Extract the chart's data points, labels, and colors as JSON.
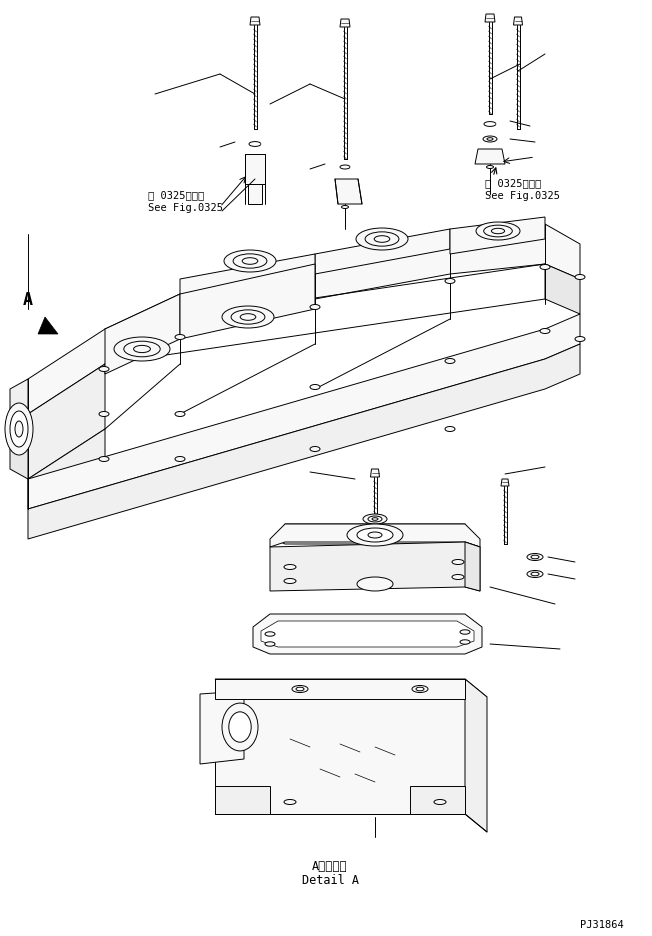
{
  "background_color": "#ffffff",
  "line_color": "#000000",
  "text_color": "#000000",
  "fig_width": 6.52,
  "fig_height": 9.37,
  "dpi": 100,
  "label_see_fig_left_jp": "第 0325図参照",
  "label_see_fig_left_en": "See Fig.0325",
  "label_see_fig_right_jp": "第 0325図参照",
  "label_see_fig_right_en": "See Fig.0325",
  "label_detail_jp": "A　詳　細",
  "label_detail_en": "Detail A",
  "label_A": "A",
  "part_number": "PJ31864"
}
